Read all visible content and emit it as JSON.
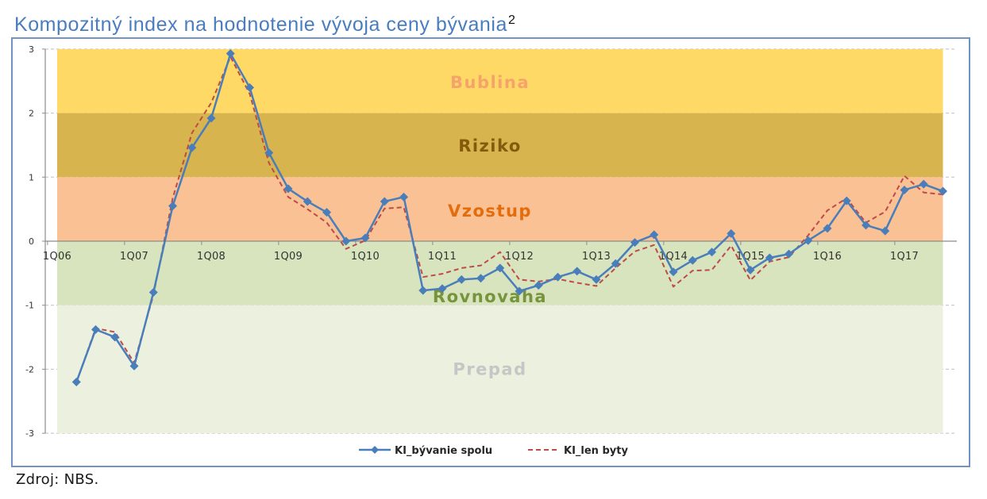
{
  "chart_data": {
    "type": "line",
    "title": "Kompozitný index na hodnotenie vývoja ceny bývania",
    "title_footnote_mark": "2",
    "categories": [
      "1Q06",
      "",
      "",
      "",
      "1Q07",
      "",
      "",
      "",
      "1Q08",
      "",
      "",
      "",
      "1Q09",
      "",
      "",
      "",
      "1Q10",
      "",
      "",
      "",
      "1Q11",
      "",
      "",
      "",
      "1Q12",
      "",
      "",
      "",
      "1Q13",
      "",
      "",
      "",
      "1Q14",
      "",
      "",
      "",
      "1Q15",
      "",
      "",
      "",
      "1Q16",
      "",
      "",
      "",
      "1Q17",
      "",
      ""
    ],
    "ylim": [
      -3,
      3
    ],
    "y_ticks": [
      3,
      2,
      1,
      0,
      -1,
      -2,
      -3
    ],
    "grid": true,
    "legend": "bottom",
    "zones": [
      {
        "label": "Bublina",
        "from": 2,
        "to": 3,
        "fill": "#FFD966",
        "label_color": "#F5A36B"
      },
      {
        "label": "Riziko",
        "from": 1,
        "to": 2,
        "fill": "#D7B44D",
        "label_color": "#845B0C"
      },
      {
        "label": "Vzostup",
        "from": 0,
        "to": 1,
        "fill": "#F9C194",
        "label_color": "#E46C0A"
      },
      {
        "label": "Rovnovaha",
        "from": -1,
        "to": 0,
        "fill": "#D7E4BD",
        "label_color": "#77933C"
      },
      {
        "label": "Prepad",
        "from": -3,
        "to": -1,
        "fill": "#EBF1DE",
        "label_color": "#C6C6C6"
      }
    ],
    "series": [
      {
        "name": "KI_bývanie spolu",
        "color": "#4A7EBB",
        "line_style": "solid",
        "marker": "diamond",
        "values": [
          null,
          -2.2,
          -1.38,
          -1.5,
          -1.95,
          -0.8,
          0.55,
          1.46,
          1.92,
          2.93,
          2.4,
          1.38,
          0.82,
          0.62,
          0.45,
          0.0,
          0.05,
          0.62,
          0.69,
          -0.77,
          -0.74,
          -0.6,
          -0.58,
          -0.42,
          -0.78,
          -0.69,
          -0.56,
          -0.47,
          -0.6,
          -0.35,
          -0.02,
          0.1,
          -0.48,
          -0.3,
          -0.17,
          0.12,
          -0.45,
          -0.26,
          -0.2,
          0.01,
          0.2,
          0.63,
          0.25,
          0.16,
          0.8,
          0.89,
          0.78
        ]
      },
      {
        "name": "KI_len byty",
        "color": "#BE4B48",
        "line_style": "dashed",
        "marker": "none",
        "values": [
          null,
          -2.2,
          -1.36,
          -1.42,
          -1.9,
          -0.84,
          0.67,
          1.69,
          2.16,
          2.88,
          2.3,
          1.22,
          0.69,
          0.5,
          0.29,
          -0.12,
          0.01,
          0.51,
          0.53,
          -0.56,
          -0.51,
          -0.42,
          -0.38,
          -0.17,
          -0.6,
          -0.63,
          -0.59,
          -0.65,
          -0.7,
          -0.42,
          -0.16,
          -0.06,
          -0.71,
          -0.46,
          -0.45,
          -0.07,
          -0.61,
          -0.32,
          -0.25,
          0.09,
          0.48,
          0.67,
          0.29,
          0.46,
          1.02,
          0.76,
          0.73
        ]
      }
    ]
  },
  "source_note": "Zdroj: NBS."
}
